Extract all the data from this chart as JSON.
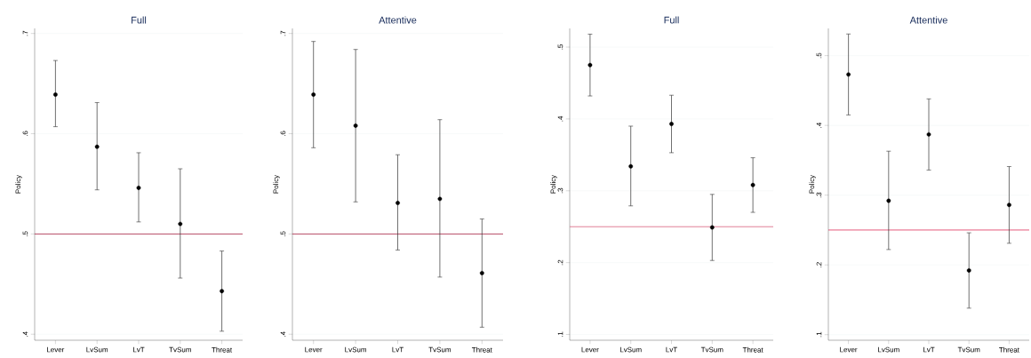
{
  "chart_data": [
    {
      "type": "scatter",
      "title": "Full",
      "ylabel": "Policy",
      "categories": [
        "Lever",
        "LvSum",
        "LvT",
        "TvSum",
        "Threat"
      ],
      "series": [
        {
          "color": "#000000",
          "values": [
            0.639,
            0.587,
            0.546,
            0.51,
            0.443
          ],
          "errors": [
            [
              0.607,
              0.673
            ],
            [
              0.544,
              0.631
            ],
            [
              0.512,
              0.581
            ],
            [
              0.456,
              0.565
            ],
            [
              0.403,
              0.483
            ]
          ]
        }
      ],
      "ylim": [
        0.394,
        0.705
      ],
      "yticks": [
        {
          "value": 0.4,
          "label": ".4"
        },
        {
          "value": 0.5,
          "label": ".5"
        },
        {
          "value": 0.6,
          "label": ".6"
        },
        {
          "value": 0.7,
          "label": ".7"
        }
      ],
      "ref_lines": [
        {
          "axis": "y",
          "value": 0.5,
          "color": "#a8203f"
        }
      ],
      "grid": "y",
      "marker": "circle"
    },
    {
      "type": "scatter",
      "title": "Attentive",
      "ylabel": "Policy",
      "categories": [
        "Lever",
        "LvSum",
        "LvT",
        "TvSum",
        "Threat"
      ],
      "series": [
        {
          "color": "#000000",
          "values": [
            0.639,
            0.608,
            0.531,
            0.535,
            0.461
          ],
          "errors": [
            [
              0.586,
              0.692
            ],
            [
              0.532,
              0.684
            ],
            [
              0.484,
              0.579
            ],
            [
              0.457,
              0.614
            ],
            [
              0.407,
              0.515
            ]
          ]
        }
      ],
      "ylim": [
        0.394,
        0.705
      ],
      "yticks": [
        {
          "value": 0.4,
          "label": ".4"
        },
        {
          "value": 0.5,
          "label": ".5"
        },
        {
          "value": 0.6,
          "label": ".6"
        },
        {
          "value": 0.7,
          "label": ".7"
        }
      ],
      "ref_lines": [
        {
          "axis": "y",
          "value": 0.5,
          "color": "#a8203f"
        }
      ],
      "grid": "y",
      "marker": "circle"
    },
    {
      "type": "scatter",
      "title": "Full",
      "ylabel": "Policy",
      "categories": [
        "Lever",
        "LvSum",
        "LvT",
        "TvSum",
        "Threat"
      ],
      "series": [
        {
          "color": "#000000",
          "values": [
            0.475,
            0.334,
            0.393,
            0.249,
            0.308
          ],
          "errors": [
            [
              0.432,
              0.518
            ],
            [
              0.279,
              0.39
            ],
            [
              0.353,
              0.433
            ],
            [
              0.203,
              0.295
            ],
            [
              0.27,
              0.346
            ]
          ]
        }
      ],
      "ylim": [
        0.092,
        0.526
      ],
      "yticks": [
        {
          "value": 0.1,
          "label": ".1"
        },
        {
          "value": 0.2,
          "label": ".2"
        },
        {
          "value": 0.3,
          "label": ".3"
        },
        {
          "value": 0.4,
          "label": ".4"
        },
        {
          "value": 0.5,
          "label": ".5"
        }
      ],
      "ref_lines": [
        {
          "axis": "y",
          "value": 0.25,
          "color": "#d9607e"
        }
      ],
      "grid": "y",
      "marker": "circle"
    },
    {
      "type": "scatter",
      "title": "Attentive",
      "ylabel": "Policy",
      "categories": [
        "Lever",
        "LvSum",
        "LvT",
        "TvSum",
        "Threat"
      ],
      "series": [
        {
          "color": "#000000",
          "values": [
            0.473,
            0.292,
            0.387,
            0.192,
            0.286
          ],
          "errors": [
            [
              0.415,
              0.531
            ],
            [
              0.222,
              0.363
            ],
            [
              0.336,
              0.438
            ],
            [
              0.138,
              0.246
            ],
            [
              0.231,
              0.341
            ]
          ]
        }
      ],
      "ylim": [
        0.092,
        0.539
      ],
      "yticks": [
        {
          "value": 0.1,
          "label": ".1"
        },
        {
          "value": 0.2,
          "label": ".2"
        },
        {
          "value": 0.3,
          "label": ".3"
        },
        {
          "value": 0.4,
          "label": ".4"
        },
        {
          "value": 0.5,
          "label": ".5"
        }
      ],
      "ref_lines": [
        {
          "axis": "y",
          "value": 0.25,
          "color": "#e0305a"
        }
      ],
      "grid": "y",
      "marker": "circle"
    }
  ]
}
